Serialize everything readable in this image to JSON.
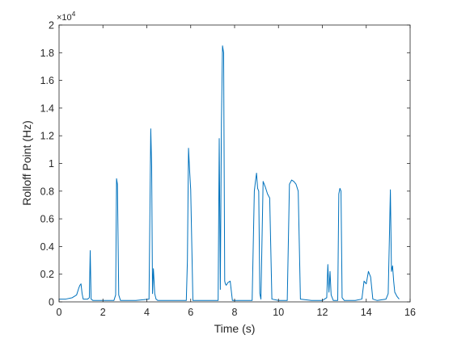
{
  "chart_data": {
    "type": "line",
    "title": "",
    "xlabel": "Time (s)",
    "ylabel": "Rolloff Point (Hz)",
    "xlim": [
      0,
      16
    ],
    "ylim": [
      0,
      20000
    ],
    "grid": false,
    "box": true,
    "x_ticks": [
      0,
      2,
      4,
      6,
      8,
      10,
      12,
      14,
      16
    ],
    "x_tick_labels": [
      "0",
      "2",
      "4",
      "6",
      "8",
      "10",
      "12",
      "14",
      "16"
    ],
    "y_ticks": [
      0,
      2000,
      4000,
      6000,
      8000,
      10000,
      12000,
      14000,
      16000,
      18000,
      20000
    ],
    "y_tick_labels": [
      "0",
      "0.2",
      "0.4",
      "0.6",
      "0.8",
      "1",
      "1.2",
      "1.4",
      "1.6",
      "1.8",
      "2"
    ],
    "y_exponent_label": {
      "base": "×10",
      "exponent": "4"
    },
    "line_color": "#0072bd",
    "series": [
      {
        "x": [
          0,
          0.3,
          0.6,
          0.8,
          0.9,
          0.95,
          1.0,
          1.05,
          1.1,
          1.2,
          1.3,
          1.38,
          1.42,
          1.46,
          1.55,
          2.0,
          2.5,
          2.58,
          2.62,
          2.66,
          2.72,
          2.8,
          3.5,
          4.1,
          4.18,
          4.22,
          4.26,
          4.3,
          4.36,
          4.42,
          4.5,
          5.0,
          5.8,
          5.85,
          5.9,
          5.95,
          6.0,
          6.1,
          7.0,
          7.25,
          7.3,
          7.35,
          7.4,
          7.45,
          7.5,
          7.55,
          7.58,
          7.62,
          7.7,
          7.8,
          7.9,
          8.0,
          8.8,
          8.9,
          8.95,
          9.0,
          9.05,
          9.1,
          9.15,
          9.2,
          9.3,
          9.35,
          9.4,
          9.5,
          9.6,
          9.7,
          10.0,
          10.4,
          10.5,
          10.6,
          10.7,
          10.8,
          10.9,
          11.0,
          11.5,
          12.0,
          12.2,
          12.25,
          12.3,
          12.35,
          12.4,
          12.5,
          12.7,
          12.75,
          12.8,
          12.85,
          12.9,
          13.0,
          13.5,
          13.8,
          13.9,
          14.0,
          14.1,
          14.2,
          14.3,
          14.5,
          14.9,
          15.0,
          15.05,
          15.1,
          15.15,
          15.2,
          15.25,
          15.3,
          15.4,
          15.5
        ],
        "y": [
          200,
          200,
          300,
          500,
          1000,
          1200,
          1300,
          600,
          200,
          200,
          200,
          300,
          3700,
          200,
          100,
          100,
          100,
          500,
          8900,
          8500,
          500,
          100,
          100,
          200,
          12500,
          9800,
          600,
          2400,
          600,
          200,
          100,
          100,
          100,
          3000,
          11100,
          9500,
          8100,
          100,
          100,
          100,
          11800,
          900,
          13000,
          18500,
          18000,
          1500,
          1300,
          1200,
          1400,
          1500,
          100,
          100,
          100,
          8000,
          8700,
          9300,
          8200,
          8000,
          600,
          200,
          8700,
          8500,
          8300,
          7800,
          7500,
          200,
          100,
          100,
          8500,
          8800,
          8700,
          8500,
          8000,
          200,
          100,
          100,
          300,
          2700,
          700,
          2200,
          500,
          100,
          100,
          7800,
          8200,
          8000,
          300,
          100,
          100,
          200,
          1500,
          1300,
          2200,
          1800,
          200,
          100,
          200,
          600,
          4200,
          8100,
          2200,
          2600,
          1500,
          700,
          400,
          200
        ]
      }
    ]
  }
}
